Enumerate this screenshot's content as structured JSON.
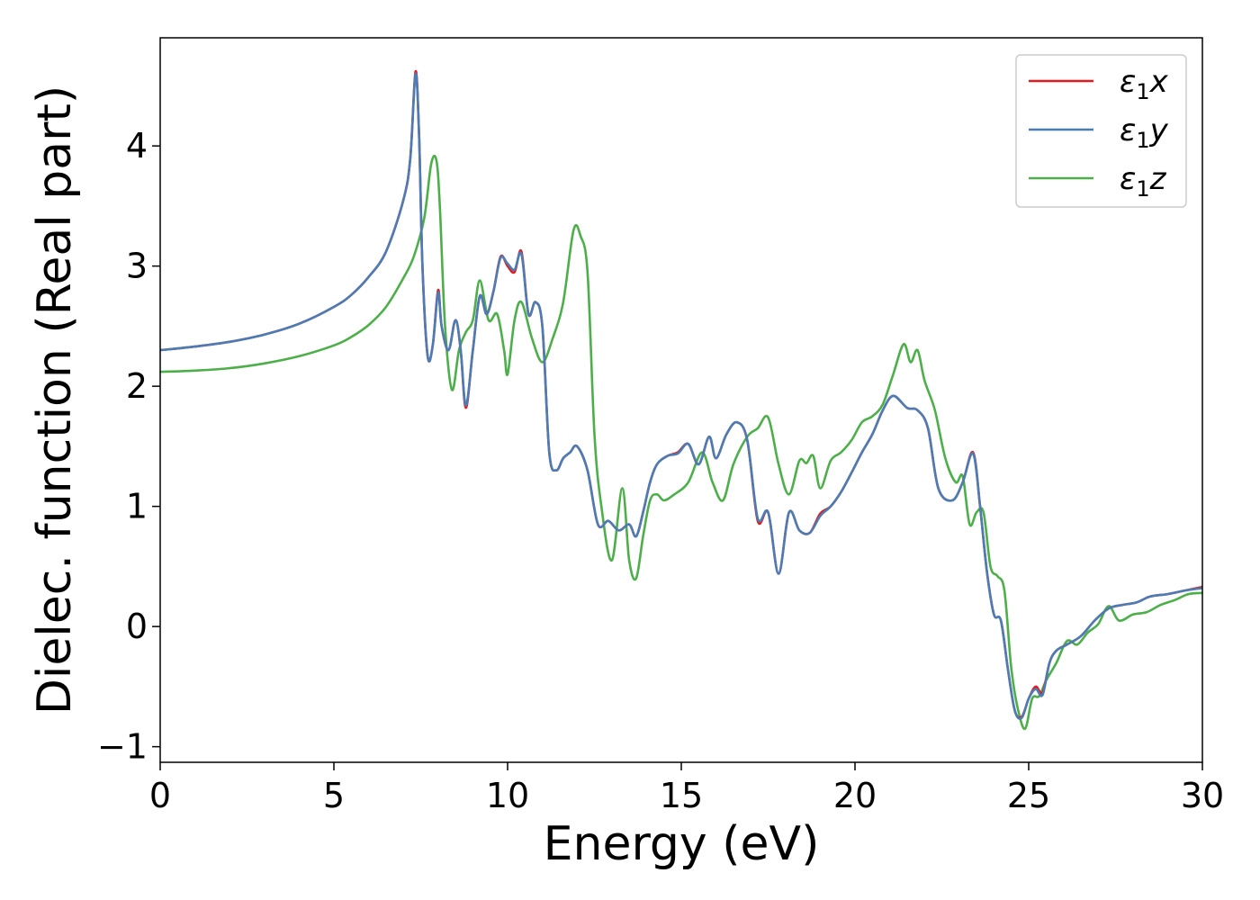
{
  "chart_data": {
    "type": "line",
    "xlabel": "Energy (eV)",
    "ylabel": "Dielec. function (Real part)",
    "xlim": [
      0,
      30
    ],
    "ylim": [
      -1.13,
      4.9
    ],
    "xticks": [
      0,
      5,
      10,
      15,
      20,
      25,
      30
    ],
    "xtick_labels": [
      "0",
      "5",
      "10",
      "15",
      "20",
      "25",
      "30"
    ],
    "yticks": [
      -1,
      0,
      1,
      2,
      3,
      4
    ],
    "ytick_labels": [
      "−1",
      "0",
      "1",
      "2",
      "3",
      "4"
    ],
    "grid": false,
    "legend_position": "top-right",
    "series": [
      {
        "name": "ε₁x",
        "label_base": "ε",
        "label_sub": "1",
        "label_var": "x",
        "color": "#e41a1c",
        "x": [
          0,
          1,
          2,
          3,
          4,
          5,
          5.5,
          6,
          6.5,
          7,
          7.2,
          7.35,
          7.45,
          7.55,
          7.7,
          7.85,
          8.0,
          8.1,
          8.3,
          8.5,
          8.65,
          8.8,
          9.0,
          9.2,
          9.4,
          9.6,
          9.8,
          10.0,
          10.2,
          10.4,
          10.6,
          10.8,
          11.0,
          11.2,
          11.4,
          11.6,
          11.8,
          12.0,
          12.3,
          12.6,
          12.9,
          13.2,
          13.5,
          13.7,
          13.9,
          14.1,
          14.3,
          14.6,
          14.9,
          15.2,
          15.5,
          15.8,
          16.0,
          16.3,
          16.6,
          16.9,
          17.2,
          17.5,
          17.8,
          18.1,
          18.4,
          18.7,
          19.0,
          19.3,
          19.6,
          19.9,
          20.2,
          20.5,
          20.8,
          21.1,
          21.5,
          21.8,
          22.1,
          22.4,
          22.8,
          23.1,
          23.4,
          23.6,
          23.8,
          24.0,
          24.2,
          24.4,
          24.6,
          24.8,
          25.0,
          25.2,
          25.4,
          25.6,
          25.8,
          26.1,
          26.5,
          26.9,
          27.3,
          27.7,
          28.1,
          28.5,
          29.0,
          29.5,
          30.0
        ],
        "y": [
          2.3,
          2.33,
          2.37,
          2.43,
          2.52,
          2.66,
          2.76,
          2.91,
          3.12,
          3.55,
          3.9,
          4.62,
          4.1,
          3.0,
          2.25,
          2.35,
          2.8,
          2.5,
          2.3,
          2.55,
          2.3,
          1.82,
          2.3,
          2.75,
          2.6,
          2.8,
          3.08,
          3.0,
          2.95,
          3.12,
          2.6,
          2.7,
          2.5,
          1.45,
          1.3,
          1.4,
          1.45,
          1.5,
          1.3,
          0.85,
          0.88,
          0.8,
          0.85,
          0.75,
          0.95,
          1.2,
          1.35,
          1.42,
          1.45,
          1.52,
          1.35,
          1.58,
          1.4,
          1.6,
          1.7,
          1.55,
          0.88,
          0.95,
          0.44,
          0.95,
          0.8,
          0.78,
          0.94,
          1.0,
          1.12,
          1.28,
          1.45,
          1.6,
          1.8,
          1.92,
          1.82,
          1.8,
          1.65,
          1.15,
          1.05,
          1.2,
          1.45,
          1.0,
          0.45,
          0.1,
          0.05,
          -0.35,
          -0.7,
          -0.75,
          -0.6,
          -0.5,
          -0.55,
          -0.3,
          -0.2,
          -0.15,
          -0.08,
          0.05,
          0.15,
          0.18,
          0.2,
          0.25,
          0.27,
          0.3,
          0.33
        ]
      },
      {
        "name": "ε₁y",
        "label_base": "ε",
        "label_sub": "1",
        "label_var": "y",
        "color": "#4a7db5",
        "x": [
          0,
          1,
          2,
          3,
          4,
          5,
          5.5,
          6,
          6.5,
          7,
          7.2,
          7.35,
          7.45,
          7.55,
          7.7,
          7.85,
          8.0,
          8.1,
          8.3,
          8.5,
          8.65,
          8.8,
          9.0,
          9.2,
          9.4,
          9.6,
          9.8,
          10.0,
          10.2,
          10.4,
          10.6,
          10.8,
          11.0,
          11.2,
          11.4,
          11.6,
          11.8,
          12.0,
          12.3,
          12.6,
          12.9,
          13.2,
          13.5,
          13.7,
          13.9,
          14.1,
          14.3,
          14.6,
          14.9,
          15.2,
          15.5,
          15.8,
          16.0,
          16.3,
          16.6,
          16.9,
          17.2,
          17.5,
          17.8,
          18.1,
          18.4,
          18.7,
          19.0,
          19.3,
          19.6,
          19.9,
          20.2,
          20.5,
          20.8,
          21.1,
          21.5,
          21.8,
          22.1,
          22.4,
          22.8,
          23.1,
          23.4,
          23.6,
          23.8,
          24.0,
          24.2,
          24.4,
          24.6,
          24.8,
          25.0,
          25.2,
          25.4,
          25.6,
          25.8,
          26.1,
          26.5,
          26.9,
          27.3,
          27.7,
          28.1,
          28.5,
          29.0,
          29.5,
          30.0
        ],
        "y": [
          2.3,
          2.33,
          2.37,
          2.43,
          2.52,
          2.66,
          2.76,
          2.91,
          3.12,
          3.55,
          3.9,
          4.6,
          4.1,
          3.0,
          2.25,
          2.35,
          2.78,
          2.5,
          2.3,
          2.55,
          2.3,
          1.84,
          2.3,
          2.75,
          2.6,
          2.8,
          3.07,
          3.02,
          2.97,
          3.1,
          2.6,
          2.7,
          2.5,
          1.45,
          1.3,
          1.4,
          1.45,
          1.5,
          1.3,
          0.85,
          0.88,
          0.8,
          0.85,
          0.75,
          0.95,
          1.2,
          1.35,
          1.42,
          1.44,
          1.52,
          1.35,
          1.58,
          1.4,
          1.6,
          1.7,
          1.55,
          0.9,
          0.95,
          0.44,
          0.95,
          0.8,
          0.78,
          0.92,
          1.0,
          1.12,
          1.28,
          1.45,
          1.6,
          1.8,
          1.92,
          1.82,
          1.8,
          1.65,
          1.15,
          1.05,
          1.2,
          1.44,
          1.0,
          0.45,
          0.1,
          0.05,
          -0.35,
          -0.7,
          -0.76,
          -0.6,
          -0.52,
          -0.57,
          -0.3,
          -0.2,
          -0.15,
          -0.08,
          0.05,
          0.15,
          0.18,
          0.2,
          0.25,
          0.27,
          0.3,
          0.32
        ]
      },
      {
        "name": "ε₁z",
        "label_base": "ε",
        "label_sub": "1",
        "label_var": "z",
        "color": "#4daf4a",
        "x": [
          0,
          1,
          2,
          3,
          4,
          5,
          5.5,
          6,
          6.5,
          7,
          7.3,
          7.6,
          7.8,
          7.95,
          8.05,
          8.2,
          8.4,
          8.6,
          8.8,
          9.0,
          9.2,
          9.45,
          9.7,
          9.9,
          10.0,
          10.2,
          10.4,
          10.7,
          11.0,
          11.3,
          11.6,
          11.9,
          12.1,
          12.3,
          12.5,
          12.7,
          13.0,
          13.3,
          13.5,
          13.7,
          13.9,
          14.1,
          14.3,
          14.5,
          14.8,
          15.2,
          15.6,
          15.9,
          16.2,
          16.5,
          16.9,
          17.2,
          17.5,
          17.8,
          18.1,
          18.4,
          18.6,
          18.8,
          19.0,
          19.3,
          19.6,
          19.9,
          20.2,
          20.5,
          20.8,
          21.1,
          21.4,
          21.6,
          21.8,
          22.0,
          22.3,
          22.6,
          22.9,
          23.1,
          23.3,
          23.5,
          23.7,
          23.9,
          24.1,
          24.3,
          24.5,
          24.7,
          24.9,
          25.1,
          25.3,
          25.5,
          25.8,
          26.1,
          26.4,
          26.7,
          27.0,
          27.3,
          27.6,
          28.0,
          28.4,
          28.8,
          29.2,
          29.6,
          30.0
        ],
        "y": [
          2.12,
          2.13,
          2.15,
          2.19,
          2.25,
          2.34,
          2.41,
          2.51,
          2.66,
          2.9,
          3.08,
          3.4,
          3.85,
          3.88,
          3.5,
          2.5,
          1.97,
          2.3,
          2.45,
          2.55,
          2.88,
          2.55,
          2.6,
          2.3,
          2.1,
          2.55,
          2.7,
          2.4,
          2.2,
          2.4,
          2.7,
          3.3,
          3.25,
          2.95,
          1.6,
          1.0,
          0.55,
          1.15,
          0.55,
          0.4,
          0.75,
          1.05,
          1.1,
          1.05,
          1.1,
          1.2,
          1.45,
          1.2,
          1.05,
          1.35,
          1.58,
          1.65,
          1.74,
          1.35,
          1.1,
          1.38,
          1.36,
          1.42,
          1.15,
          1.38,
          1.45,
          1.55,
          1.7,
          1.75,
          1.85,
          2.1,
          2.35,
          2.2,
          2.3,
          2.05,
          1.8,
          1.4,
          1.2,
          1.25,
          0.85,
          0.95,
          0.95,
          0.5,
          0.42,
          0.3,
          -0.35,
          -0.7,
          -0.85,
          -0.6,
          -0.58,
          -0.45,
          -0.3,
          -0.12,
          -0.15,
          -0.05,
          0.02,
          0.17,
          0.05,
          0.1,
          0.12,
          0.18,
          0.22,
          0.27,
          0.28
        ]
      }
    ]
  }
}
